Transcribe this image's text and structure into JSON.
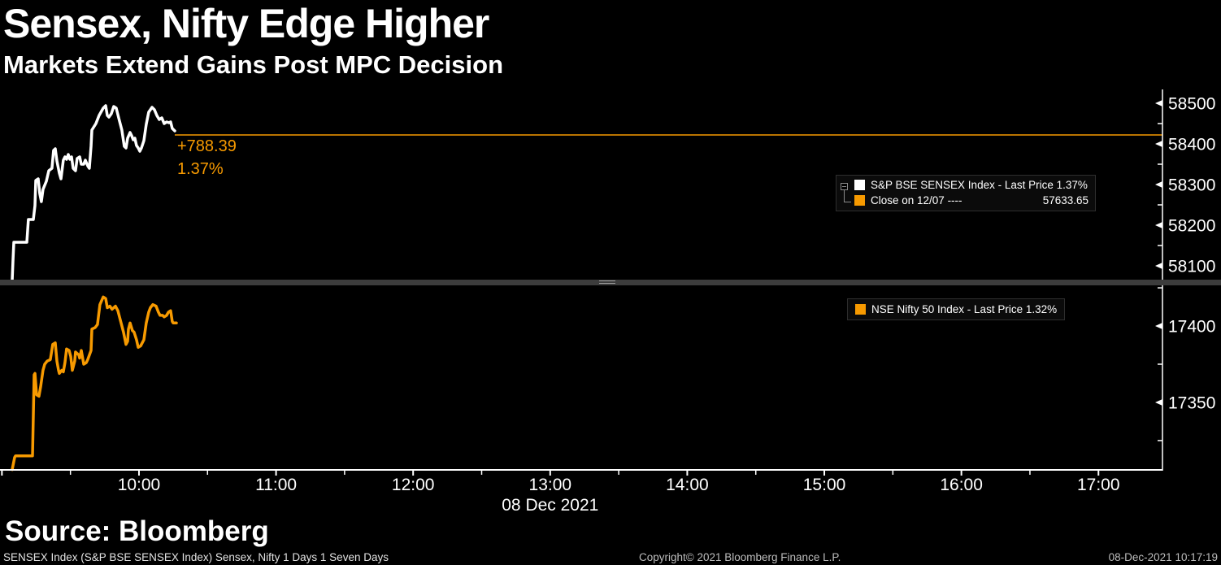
{
  "header": {
    "title": "Sensex, Nifty Edge Higher",
    "subtitle": "Markets Extend Gains Post MPC Decision"
  },
  "colors": {
    "accent_orange": "#f79a00",
    "line_white": "#ffffff",
    "background": "#000000",
    "axis": "#ffffff"
  },
  "x_axis": {
    "range": [
      8.986,
      17.467
    ],
    "tick_labels": [
      {
        "t": 10,
        "label": "10:00"
      },
      {
        "t": 11,
        "label": "11:00"
      },
      {
        "t": 12,
        "label": "12:00"
      },
      {
        "t": 13,
        "label": "13:00"
      },
      {
        "t": 14,
        "label": "14:00"
      },
      {
        "t": 15,
        "label": "15:00"
      },
      {
        "t": 16,
        "label": "16:00"
      },
      {
        "t": 17,
        "label": "17:00"
      }
    ],
    "major_unlabeled": [
      9
    ],
    "minor_t": [
      9.5,
      10.5,
      11.5,
      12.5,
      13.5,
      14.5,
      15.5,
      16.5
    ],
    "date_label": "08 Dec 2021",
    "date_t": 13
  },
  "chart_data": [
    {
      "id": "sensex",
      "type": "line",
      "name": "S&P BSE SENSEX Index",
      "color": "#ffffff",
      "y_range": [
        58058,
        58534
      ],
      "y_ticks": [
        {
          "v": 58500,
          "label": "58500"
        },
        {
          "v": 58400,
          "label": "58400"
        },
        {
          "v": 58300,
          "label": "58300"
        },
        {
          "v": 58200,
          "label": "58200"
        },
        {
          "v": 58100,
          "label": "58100"
        }
      ],
      "y_minor": [
        58450,
        58350,
        58250,
        58150
      ],
      "last_price": 58422.04,
      "close_value": 57633.65,
      "last_price_line": {
        "value": 58422.04,
        "from_t": 10.261,
        "color": "#f79a00"
      },
      "annotation": {
        "change": "+788.39",
        "pct": "1.37%"
      },
      "legend": {
        "row1": "S&P BSE SENSEX Index - Last Price 1.37%",
        "row2_label": "Close on 12/07 ----",
        "row2_value": "57633.65"
      },
      "points": [
        [
          9.075,
          58064
        ],
        [
          9.081,
          58114
        ],
        [
          9.087,
          58158
        ],
        [
          9.182,
          58158
        ],
        [
          9.193,
          58214
        ],
        [
          9.229,
          58214
        ],
        [
          9.241,
          58248
        ],
        [
          9.247,
          58310
        ],
        [
          9.265,
          58314
        ],
        [
          9.276,
          58278
        ],
        [
          9.288,
          58258
        ],
        [
          9.3,
          58288
        ],
        [
          9.324,
          58308
        ],
        [
          9.342,
          58334
        ],
        [
          9.365,
          58340
        ],
        [
          9.377,
          58384
        ],
        [
          9.389,
          58388
        ],
        [
          9.401,
          58358
        ],
        [
          9.419,
          58328
        ],
        [
          9.431,
          58314
        ],
        [
          9.448,
          58360
        ],
        [
          9.46,
          58368
        ],
        [
          9.472,
          58362
        ],
        [
          9.484,
          58374
        ],
        [
          9.496,
          58362
        ],
        [
          9.508,
          58368
        ],
        [
          9.52,
          58340
        ],
        [
          9.537,
          58334
        ],
        [
          9.549,
          58364
        ],
        [
          9.567,
          58368
        ],
        [
          9.579,
          58350
        ],
        [
          9.597,
          58350
        ],
        [
          9.609,
          58360
        ],
        [
          9.626,
          58346
        ],
        [
          9.638,
          58340
        ],
        [
          9.65,
          58394
        ],
        [
          9.656,
          58434
        ],
        [
          9.686,
          58450
        ],
        [
          9.709,
          58470
        ],
        [
          9.739,
          58488
        ],
        [
          9.757,
          58494
        ],
        [
          9.769,
          58470
        ],
        [
          9.781,
          58466
        ],
        [
          9.798,
          58474
        ],
        [
          9.816,
          58492
        ],
        [
          9.834,
          58488
        ],
        [
          9.852,
          58464
        ],
        [
          9.875,
          58434
        ],
        [
          9.893,
          58394
        ],
        [
          9.905,
          58390
        ],
        [
          9.917,
          58414
        ],
        [
          9.935,
          58428
        ],
        [
          9.947,
          58420
        ],
        [
          9.958,
          58410
        ],
        [
          9.97,
          58414
        ],
        [
          9.982,
          58396
        ],
        [
          9.994,
          58390
        ],
        [
          10.006,
          58382
        ],
        [
          10.018,
          58390
        ],
        [
          10.036,
          58408
        ],
        [
          10.053,
          58448
        ],
        [
          10.071,
          58478
        ],
        [
          10.095,
          58490
        ],
        [
          10.113,
          58484
        ],
        [
          10.13,
          58470
        ],
        [
          10.148,
          58460
        ],
        [
          10.166,
          58464
        ],
        [
          10.184,
          58450
        ],
        [
          10.202,
          58454
        ],
        [
          10.219,
          58452
        ],
        [
          10.231,
          58454
        ],
        [
          10.243,
          58438
        ],
        [
          10.261,
          58432
        ]
      ]
    },
    {
      "id": "nifty",
      "type": "line",
      "name": "NSE Nifty 50 Index",
      "color": "#f79a00",
      "y_range": [
        17305.8,
        17426.1
      ],
      "y_ticks": [
        {
          "v": 17400,
          "label": "17400"
        },
        {
          "v": 17350,
          "label": "17350"
        }
      ],
      "y_minor": [
        17425,
        17375,
        17325
      ],
      "legend": {
        "row1": "NSE Nifty 50 Index - Last Price 1.32%"
      },
      "points": [
        [
          9.075,
          17306
        ],
        [
          9.093,
          17314
        ],
        [
          9.099,
          17315
        ],
        [
          9.223,
          17315
        ],
        [
          9.235,
          17368
        ],
        [
          9.241,
          17369
        ],
        [
          9.253,
          17355
        ],
        [
          9.27,
          17354
        ],
        [
          9.282,
          17360
        ],
        [
          9.3,
          17371
        ],
        [
          9.312,
          17375
        ],
        [
          9.33,
          17377
        ],
        [
          9.353,
          17378
        ],
        [
          9.371,
          17388
        ],
        [
          9.389,
          17389
        ],
        [
          9.401,
          17377
        ],
        [
          9.413,
          17371
        ],
        [
          9.419,
          17369
        ],
        [
          9.437,
          17371
        ],
        [
          9.448,
          17370
        ],
        [
          9.46,
          17376
        ],
        [
          9.472,
          17385
        ],
        [
          9.49,
          17384
        ],
        [
          9.502,
          17380
        ],
        [
          9.514,
          17371
        ],
        [
          9.531,
          17377
        ],
        [
          9.537,
          17383
        ],
        [
          9.561,
          17381
        ],
        [
          9.567,
          17379
        ],
        [
          9.579,
          17384
        ],
        [
          9.597,
          17375
        ],
        [
          9.615,
          17376
        ],
        [
          9.626,
          17378
        ],
        [
          9.65,
          17384
        ],
        [
          9.656,
          17398
        ],
        [
          9.68,
          17399
        ],
        [
          9.697,
          17401
        ],
        [
          9.715,
          17414
        ],
        [
          9.739,
          17419
        ],
        [
          9.757,
          17418
        ],
        [
          9.769,
          17412
        ],
        [
          9.787,
          17413
        ],
        [
          9.804,
          17411
        ],
        [
          9.828,
          17413
        ],
        [
          9.846,
          17410
        ],
        [
          9.858,
          17406
        ],
        [
          9.887,
          17396
        ],
        [
          9.905,
          17388
        ],
        [
          9.917,
          17390
        ],
        [
          9.923,
          17398
        ],
        [
          9.935,
          17402
        ],
        [
          9.952,
          17397
        ],
        [
          9.964,
          17396
        ],
        [
          9.982,
          17391
        ],
        [
          9.994,
          17386
        ],
        [
          10.012,
          17387
        ],
        [
          10.036,
          17391
        ],
        [
          10.053,
          17402
        ],
        [
          10.071,
          17409
        ],
        [
          10.083,
          17412
        ],
        [
          10.101,
          17414
        ],
        [
          10.125,
          17413
        ],
        [
          10.142,
          17409
        ],
        [
          10.154,
          17407
        ],
        [
          10.172,
          17407
        ],
        [
          10.184,
          17406
        ],
        [
          10.202,
          17407
        ],
        [
          10.214,
          17409
        ],
        [
          10.231,
          17410
        ],
        [
          10.243,
          17403
        ],
        [
          10.249,
          17402
        ],
        [
          10.273,
          17402
        ]
      ]
    }
  ],
  "footer": {
    "source": "Source: Bloomberg",
    "status": "SENSEX Index (S&P BSE SENSEX Index) Sensex, Nifty 1 Days 1 Seven Days",
    "copyright": "Copyright© 2021 Bloomberg Finance L.P.",
    "timestamp": "08-Dec-2021 10:17:19"
  }
}
